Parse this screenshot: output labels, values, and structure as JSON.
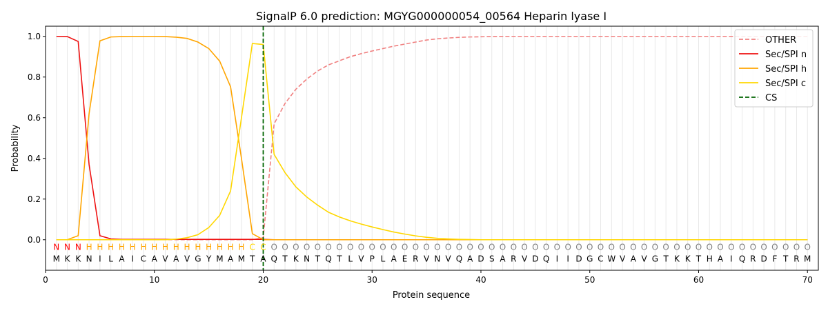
{
  "chart_data": {
    "type": "line",
    "title": "SignalP 6.0 prediction: MGYG000000054_00564 Heparin lyase I",
    "xlabel": "Protein sequence",
    "ylabel": "Probability",
    "xlim": [
      0,
      71
    ],
    "ylim": [
      -0.15,
      1.05
    ],
    "xticks": [
      0,
      10,
      20,
      30,
      40,
      50,
      60,
      70
    ],
    "yticks": [
      0.0,
      0.2,
      0.4,
      0.6,
      0.8,
      1.0
    ],
    "xtick_labels": [
      "0",
      "10",
      "20",
      "30",
      "40",
      "50",
      "60",
      "70"
    ],
    "ytick_labels": [
      "0.0",
      "0.2",
      "0.4",
      "0.6",
      "0.8",
      "1.0"
    ],
    "grid": "vertical lines at each residue",
    "legend_position": "top-right",
    "sequence": "MKKNILAICAVAVGYMAMTAQTKNTQTLVPLAERVNVQADSARVDQIIDGCWVAVGTKKTHAIQRDFTRM",
    "annotation": "NNNHHHHHHHHHHHHHHHCCOOOOOOOOOOOOOOOOOOOOOOOOOOOOOOOOOOOOOOOOOOOOOOOOOO",
    "annotation_colors": {
      "N": "#ff0000",
      "H": "#ffa500",
      "C": "#ffd700",
      "O": "#808080"
    },
    "cleavage_site": 20,
    "series": [
      {
        "name": "OTHER",
        "color": "#f08080",
        "dash": "dashed",
        "x": [
          1,
          2,
          3,
          4,
          5,
          6,
          7,
          8,
          9,
          10,
          11,
          12,
          13,
          14,
          15,
          16,
          17,
          18,
          19,
          20,
          21,
          22,
          23,
          24,
          25,
          26,
          27,
          28,
          29,
          30,
          31,
          32,
          33,
          34,
          35,
          36,
          37,
          38,
          39,
          40,
          41,
          42,
          43,
          44,
          45,
          46,
          47,
          48,
          49,
          50,
          51,
          52,
          53,
          54,
          55,
          56,
          57,
          58,
          59,
          60,
          61,
          62,
          63,
          64,
          65,
          66,
          67,
          68,
          69,
          70
        ],
        "values": [
          0.0,
          0.0,
          0.0,
          0.0,
          0.0,
          0.0,
          0.0,
          0.0,
          0.0,
          0.0,
          0.0,
          0.0,
          0.0,
          0.0,
          0.0,
          0.0,
          0.0,
          0.0,
          0.0,
          0.01,
          0.57,
          0.67,
          0.74,
          0.79,
          0.83,
          0.86,
          0.88,
          0.9,
          0.915,
          0.928,
          0.94,
          0.952,
          0.962,
          0.972,
          0.982,
          0.988,
          0.992,
          0.995,
          0.997,
          0.998,
          0.999,
          1.0,
          1.0,
          1.0,
          1.0,
          1.0,
          1.0,
          1.0,
          1.0,
          1.0,
          1.0,
          1.0,
          1.0,
          1.0,
          1.0,
          1.0,
          1.0,
          1.0,
          1.0,
          1.0,
          1.0,
          1.0,
          1.0,
          1.0,
          1.0,
          1.0,
          1.0,
          1.0,
          1.0,
          1.0
        ]
      },
      {
        "name": "Sec/SPI n",
        "color": "#ee1111",
        "dash": "solid",
        "x": [
          1,
          2,
          3,
          4,
          5,
          6,
          7,
          8,
          9,
          10,
          11,
          12,
          13,
          14,
          15,
          16,
          17,
          18,
          19,
          20,
          21,
          22,
          23,
          24,
          25,
          26,
          27,
          28,
          29,
          30,
          31,
          32,
          33,
          34,
          35,
          36,
          37,
          38,
          39,
          40,
          41,
          42,
          43,
          44,
          45,
          46,
          47,
          48,
          49,
          50,
          51,
          52,
          53,
          54,
          55,
          56,
          57,
          58,
          59,
          60,
          61,
          62,
          63,
          64,
          65,
          66,
          67,
          68,
          69,
          70
        ],
        "values": [
          1.0,
          0.999,
          0.975,
          0.37,
          0.02,
          0.004,
          0.002,
          0.002,
          0.002,
          0.002,
          0.002,
          0.002,
          0.002,
          0.002,
          0.002,
          0.002,
          0.002,
          0.002,
          0.002,
          0.002,
          0.0,
          0.0,
          0.0,
          0.0,
          0.0,
          0.0,
          0.0,
          0.0,
          0.0,
          0.0,
          0.0,
          0.0,
          0.0,
          0.0,
          0.0,
          0.0,
          0.0,
          0.0,
          0.0,
          0.0,
          0.0,
          0.0,
          0.0,
          0.0,
          0.0,
          0.0,
          0.0,
          0.0,
          0.0,
          0.0,
          0.0,
          0.0,
          0.0,
          0.0,
          0.0,
          0.0,
          0.0,
          0.0,
          0.0,
          0.0,
          0.0,
          0.0,
          0.0,
          0.0,
          0.0,
          0.0,
          0.0,
          0.0,
          0.0,
          0.0
        ]
      },
      {
        "name": "Sec/SPI h",
        "color": "#ffa500",
        "dash": "solid",
        "x": [
          1,
          2,
          3,
          4,
          5,
          6,
          7,
          8,
          9,
          10,
          11,
          12,
          13,
          14,
          15,
          16,
          17,
          18,
          19,
          20,
          21,
          22,
          23,
          24,
          25,
          26,
          27,
          28,
          29,
          30,
          31,
          32,
          33,
          34,
          35,
          36,
          37,
          38,
          39,
          40,
          41,
          42,
          43,
          44,
          45,
          46,
          47,
          48,
          49,
          50,
          51,
          52,
          53,
          54,
          55,
          56,
          57,
          58,
          59,
          60,
          61,
          62,
          63,
          64,
          65,
          66,
          67,
          68,
          69,
          70
        ],
        "values": [
          0.0,
          0.0,
          0.02,
          0.62,
          0.978,
          0.997,
          0.999,
          1.0,
          1.0,
          1.0,
          0.999,
          0.996,
          0.99,
          0.972,
          0.94,
          0.878,
          0.752,
          0.4,
          0.03,
          0.0,
          0.0,
          0.0,
          0.0,
          0.0,
          0.0,
          0.0,
          0.0,
          0.0,
          0.0,
          0.0,
          0.0,
          0.0,
          0.0,
          0.0,
          0.0,
          0.0,
          0.0,
          0.0,
          0.0,
          0.0,
          0.0,
          0.0,
          0.0,
          0.0,
          0.0,
          0.0,
          0.0,
          0.0,
          0.0,
          0.0,
          0.0,
          0.0,
          0.0,
          0.0,
          0.0,
          0.0,
          0.0,
          0.0,
          0.0,
          0.0,
          0.0,
          0.0,
          0.0,
          0.0,
          0.0,
          0.0,
          0.0,
          0.0,
          0.0,
          0.0
        ]
      },
      {
        "name": "Sec/SPI c",
        "color": "#ffd700",
        "dash": "solid",
        "x": [
          1,
          2,
          3,
          4,
          5,
          6,
          7,
          8,
          9,
          10,
          11,
          12,
          13,
          14,
          15,
          16,
          17,
          18,
          19,
          20,
          21,
          22,
          23,
          24,
          25,
          26,
          27,
          28,
          29,
          30,
          31,
          32,
          33,
          34,
          35,
          36,
          37,
          38,
          39,
          40,
          41,
          42,
          43,
          44,
          45,
          46,
          47,
          48,
          49,
          50,
          51,
          52,
          53,
          54,
          55,
          56,
          57,
          58,
          59,
          60,
          61,
          62,
          63,
          64,
          65,
          66,
          67,
          68,
          69,
          70
        ],
        "values": [
          0.0,
          0.0,
          0.0,
          0.0,
          0.0,
          0.0,
          0.0,
          0.0,
          0.0,
          0.0,
          0.0,
          0.003,
          0.01,
          0.025,
          0.06,
          0.12,
          0.24,
          0.6,
          0.965,
          0.96,
          0.42,
          0.33,
          0.26,
          0.21,
          0.17,
          0.135,
          0.112,
          0.093,
          0.077,
          0.063,
          0.05,
          0.038,
          0.028,
          0.019,
          0.012,
          0.007,
          0.004,
          0.002,
          0.001,
          0.0,
          0.0,
          0.0,
          0.0,
          0.0,
          0.0,
          0.0,
          0.0,
          0.0,
          0.0,
          0.0,
          0.0,
          0.0,
          0.0,
          0.0,
          0.0,
          0.0,
          0.0,
          0.0,
          0.0,
          0.0,
          0.0,
          0.0,
          0.0,
          0.0,
          0.0,
          0.0,
          0.0,
          0.0,
          0.0,
          0.0
        ]
      }
    ],
    "legend": [
      {
        "label": "OTHER",
        "color": "#f08080",
        "dash": "dashed"
      },
      {
        "label": "Sec/SPI n",
        "color": "#ee1111",
        "dash": "solid"
      },
      {
        "label": "Sec/SPI h",
        "color": "#ffa500",
        "dash": "solid"
      },
      {
        "label": "Sec/SPI c",
        "color": "#ffd700",
        "dash": "solid"
      },
      {
        "label": "CS",
        "color": "#006400",
        "dash": "dashed"
      }
    ]
  }
}
